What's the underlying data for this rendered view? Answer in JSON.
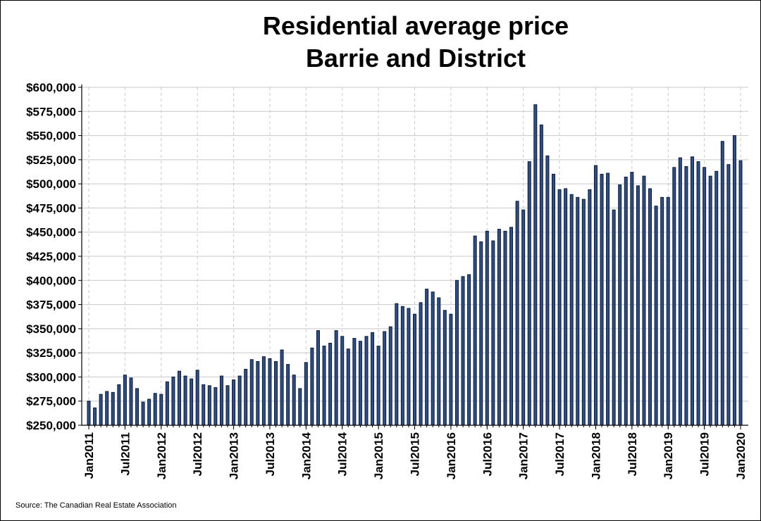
{
  "chart_data": {
    "type": "bar",
    "title": [
      "Residential average price",
      "Barrie and District"
    ],
    "source": "Source: The Canadian Real Estate Association",
    "xlabel": "",
    "ylabel": "",
    "ylim": [
      250000,
      600000
    ],
    "yticks": [
      250000,
      275000,
      300000,
      325000,
      350000,
      375000,
      400000,
      425000,
      450000,
      475000,
      500000,
      525000,
      550000,
      575000,
      600000
    ],
    "ytick_labels": [
      "$250,000",
      "$275,000",
      "$300,000",
      "$325,000",
      "$350,000",
      "$375,000",
      "$400,000",
      "$425,000",
      "$450,000",
      "$475,000",
      "$500,000",
      "$525,000",
      "$550,000",
      "$575,000",
      "$600,000"
    ],
    "xtick_labels": [
      "Jan2011",
      "Jul2011",
      "Jan2012",
      "Jul2012",
      "Jan2013",
      "Jul2013",
      "Jan2014",
      "Jul2014",
      "Jan2015",
      "Jul2015",
      "Jan2016",
      "Jul2016",
      "Jan2017",
      "Jul2017",
      "Jan2018",
      "Jul2018",
      "Jan2019",
      "Jul2019",
      "Jan2020"
    ],
    "x_start": "Jan2011",
    "x_end": "Jan2020",
    "bar_color": "#2E4E8A",
    "grid": "horizontal solid, vertical dashed at tick labels",
    "values": [
      275000,
      268000,
      282000,
      285000,
      284000,
      292000,
      302000,
      299000,
      288000,
      274000,
      277000,
      283000,
      282000,
      295000,
      300000,
      306000,
      301000,
      298000,
      307000,
      292000,
      291000,
      289000,
      301000,
      291000,
      297000,
      301000,
      308000,
      318000,
      316000,
      321000,
      319000,
      316000,
      328000,
      313000,
      302000,
      288000,
      315000,
      330000,
      348000,
      332000,
      335000,
      348000,
      342000,
      329000,
      340000,
      337000,
      342000,
      346000,
      332000,
      347000,
      352000,
      376000,
      373000,
      371000,
      365000,
      377000,
      391000,
      388000,
      382000,
      369000,
      365000,
      400000,
      404000,
      406000,
      446000,
      440000,
      451000,
      441000,
      453000,
      451000,
      455000,
      482000,
      473000,
      523000,
      582000,
      561000,
      529000,
      510000,
      494000,
      495000,
      489000,
      486000,
      484000,
      494000,
      519000,
      510000,
      511000,
      473000,
      499000,
      507000,
      512000,
      498000,
      508000,
      495000,
      477000,
      486000,
      486000,
      517000,
      527000,
      518000,
      528000,
      523000,
      517000,
      508000,
      513000,
      544000,
      520000,
      550000,
      524000
    ]
  }
}
